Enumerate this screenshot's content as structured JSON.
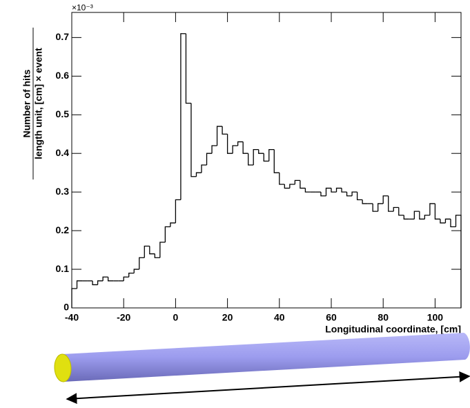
{
  "chart_data": {
    "type": "histogram",
    "x_label": "Longitudinal coordinate, [cm]",
    "y_label_numerator": "Number of hits",
    "y_label_denominator": "length unit, [cm] × event",
    "y_multiplier": "×10⁻³",
    "color": "#000000",
    "bins": [
      -40,
      -38,
      -36,
      -34,
      -32,
      -30,
      -28,
      -26,
      -24,
      -22,
      -20,
      -18,
      -16,
      -14,
      -12,
      -10,
      -8,
      -6,
      -4,
      -2,
      0,
      2,
      4,
      6,
      8,
      10,
      12,
      14,
      16,
      18,
      20,
      22,
      24,
      26,
      28,
      30,
      32,
      34,
      36,
      38,
      40,
      42,
      44,
      46,
      48,
      50,
      52,
      54,
      56,
      58,
      60,
      62,
      64,
      66,
      68,
      70,
      72,
      74,
      76,
      78,
      80,
      82,
      84,
      86,
      88,
      90,
      92,
      94,
      96,
      98,
      100,
      102,
      104,
      106,
      108,
      110
    ],
    "values": [
      0.05,
      0.07,
      0.07,
      0.07,
      0.06,
      0.07,
      0.08,
      0.07,
      0.07,
      0.07,
      0.08,
      0.09,
      0.1,
      0.13,
      0.16,
      0.14,
      0.13,
      0.17,
      0.21,
      0.22,
      0.28,
      0.71,
      0.53,
      0.34,
      0.35,
      0.37,
      0.4,
      0.42,
      0.47,
      0.45,
      0.4,
      0.42,
      0.43,
      0.4,
      0.37,
      0.41,
      0.4,
      0.38,
      0.41,
      0.35,
      0.32,
      0.31,
      0.32,
      0.33,
      0.31,
      0.3,
      0.3,
      0.3,
      0.29,
      0.31,
      0.3,
      0.31,
      0.3,
      0.29,
      0.3,
      0.28,
      0.27,
      0.27,
      0.25,
      0.27,
      0.29,
      0.25,
      0.26,
      0.24,
      0.23,
      0.23,
      0.25,
      0.23,
      0.24,
      0.27,
      0.23,
      0.22,
      0.23,
      0.21,
      0.24
    ],
    "xlim": [
      -40,
      110
    ],
    "ylim": [
      0,
      0.765
    ],
    "xticks": [
      -40,
      -20,
      0,
      20,
      40,
      60,
      80,
      100
    ],
    "yticks": [
      0,
      0.1,
      0.2,
      0.3,
      0.4,
      0.5,
      0.6,
      0.7
    ]
  }
}
